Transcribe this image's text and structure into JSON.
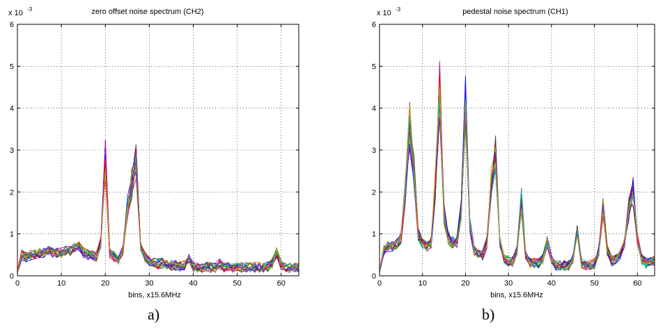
{
  "chart_data": [
    {
      "type": "line",
      "title": "zero offset noise spectrum  (CH2)",
      "xlabel": "bins,  x15.6MHz",
      "ylabel": "",
      "exponent_label": "x 10",
      "exponent_power": "-3",
      "xlim": [
        0,
        64
      ],
      "ylim": [
        0,
        6
      ],
      "xticks": [
        "0",
        "10",
        "20",
        "30",
        "40",
        "50",
        "60"
      ],
      "yticks": [
        "0",
        "1",
        "2",
        "3",
        "4",
        "5",
        "6"
      ],
      "grid": true,
      "caption": "a)",
      "num_traces": 20,
      "peak_profile": [
        [
          0,
          0.1
        ],
        [
          1,
          0.5
        ],
        [
          2,
          0.45
        ],
        [
          3,
          0.5
        ],
        [
          4,
          0.52
        ],
        [
          5,
          0.55
        ],
        [
          6,
          0.55
        ],
        [
          7,
          0.6
        ],
        [
          8,
          0.55
        ],
        [
          9,
          0.55
        ],
        [
          10,
          0.55
        ],
        [
          11,
          0.6
        ],
        [
          12,
          0.6
        ],
        [
          13,
          0.65
        ],
        [
          14,
          0.7
        ],
        [
          15,
          0.55
        ],
        [
          16,
          0.5
        ],
        [
          17,
          0.5
        ],
        [
          18,
          0.45
        ],
        [
          19,
          0.8
        ],
        [
          20,
          2.8
        ],
        [
          21,
          0.55
        ],
        [
          22,
          0.45
        ],
        [
          23,
          0.35
        ],
        [
          24,
          0.6
        ],
        [
          25,
          1.6
        ],
        [
          26,
          2.2
        ],
        [
          27,
          2.7
        ],
        [
          28,
          0.7
        ],
        [
          29,
          0.45
        ],
        [
          30,
          0.35
        ],
        [
          31,
          0.3
        ],
        [
          32,
          0.28
        ],
        [
          33,
          0.3
        ],
        [
          34,
          0.28
        ],
        [
          35,
          0.25
        ],
        [
          36,
          0.25
        ],
        [
          37,
          0.22
        ],
        [
          38,
          0.25
        ],
        [
          39,
          0.4
        ],
        [
          40,
          0.22
        ],
        [
          41,
          0.2
        ],
        [
          42,
          0.2
        ],
        [
          43,
          0.2
        ],
        [
          44,
          0.2
        ],
        [
          45,
          0.2
        ],
        [
          46,
          0.28
        ],
        [
          47,
          0.2
        ],
        [
          48,
          0.2
        ],
        [
          49,
          0.2
        ],
        [
          50,
          0.2
        ],
        [
          51,
          0.2
        ],
        [
          52,
          0.2
        ],
        [
          53,
          0.2
        ],
        [
          54,
          0.2
        ],
        [
          55,
          0.2
        ],
        [
          56,
          0.2
        ],
        [
          57,
          0.22
        ],
        [
          58,
          0.3
        ],
        [
          59,
          0.55
        ],
        [
          60,
          0.25
        ],
        [
          61,
          0.2
        ],
        [
          62,
          0.2
        ],
        [
          63,
          0.2
        ],
        [
          64,
          0.2
        ]
      ]
    },
    {
      "type": "line",
      "title": "pedestal noise spectrum (CH1)",
      "xlabel": "bins,  x15.6MHz",
      "ylabel": "",
      "exponent_label": "x 10",
      "exponent_power": "-3",
      "xlim": [
        0,
        64
      ],
      "ylim": [
        0,
        6
      ],
      "xticks": [
        "0",
        "10",
        "20",
        "30",
        "40",
        "50",
        "60"
      ],
      "yticks": [
        "0",
        "1",
        "2",
        "3",
        "4",
        "5",
        "6"
      ],
      "grid": true,
      "caption": "b)",
      "num_traces": 20,
      "peak_profile": [
        [
          0,
          0.1
        ],
        [
          1,
          0.6
        ],
        [
          2,
          0.7
        ],
        [
          3,
          0.7
        ],
        [
          4,
          0.75
        ],
        [
          5,
          0.9
        ],
        [
          6,
          2.0
        ],
        [
          7,
          3.6
        ],
        [
          8,
          2.6
        ],
        [
          9,
          1.0
        ],
        [
          10,
          0.8
        ],
        [
          11,
          0.7
        ],
        [
          12,
          0.8
        ],
        [
          13,
          2.2
        ],
        [
          14,
          4.4
        ],
        [
          15,
          1.5
        ],
        [
          16,
          0.9
        ],
        [
          17,
          0.8
        ],
        [
          18,
          0.8
        ],
        [
          19,
          1.6
        ],
        [
          20,
          4.2
        ],
        [
          21,
          1.2
        ],
        [
          22,
          0.6
        ],
        [
          23,
          0.5
        ],
        [
          24,
          0.5
        ],
        [
          25,
          0.8
        ],
        [
          26,
          2.2
        ],
        [
          27,
          2.9
        ],
        [
          28,
          0.8
        ],
        [
          29,
          0.4
        ],
        [
          30,
          0.35
        ],
        [
          31,
          0.35
        ],
        [
          32,
          0.6
        ],
        [
          33,
          1.8
        ],
        [
          34,
          0.5
        ],
        [
          35,
          0.3
        ],
        [
          36,
          0.3
        ],
        [
          37,
          0.3
        ],
        [
          38,
          0.4
        ],
        [
          39,
          0.8
        ],
        [
          40,
          0.4
        ],
        [
          41,
          0.25
        ],
        [
          42,
          0.25
        ],
        [
          43,
          0.25
        ],
        [
          44,
          0.25
        ],
        [
          45,
          0.4
        ],
        [
          46,
          1.1
        ],
        [
          47,
          0.3
        ],
        [
          48,
          0.25
        ],
        [
          49,
          0.25
        ],
        [
          50,
          0.3
        ],
        [
          51,
          0.6
        ],
        [
          52,
          1.6
        ],
        [
          53,
          0.6
        ],
        [
          54,
          0.35
        ],
        [
          55,
          0.4
        ],
        [
          56,
          0.5
        ],
        [
          57,
          0.8
        ],
        [
          58,
          1.6
        ],
        [
          59,
          2.0
        ],
        [
          60,
          0.9
        ],
        [
          61,
          0.4
        ],
        [
          62,
          0.3
        ],
        [
          63,
          0.35
        ],
        [
          64,
          0.35
        ]
      ]
    }
  ],
  "trace_colors": [
    "#0000ff",
    "#008000",
    "#ff0000",
    "#00bfbf",
    "#bf00bf",
    "#bfbf00",
    "#404040"
  ]
}
